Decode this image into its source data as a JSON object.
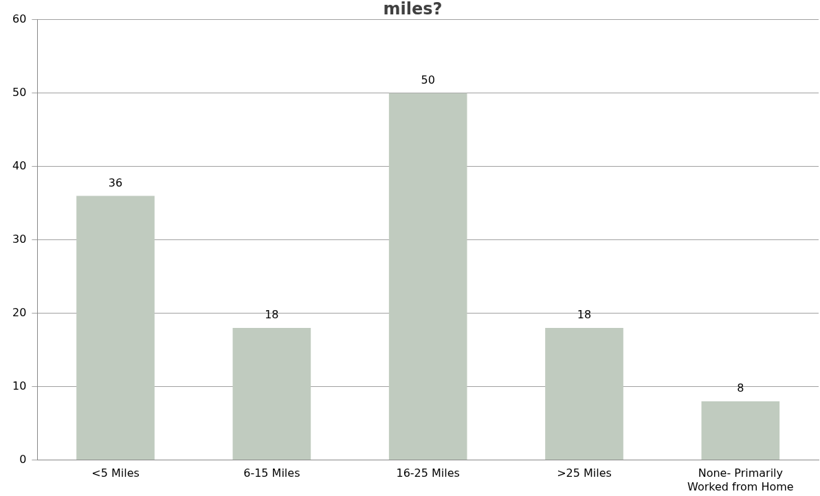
{
  "chart_data": {
    "type": "bar",
    "title": "miles?",
    "categories": [
      "<5 Miles",
      "6-15 Miles",
      "16-25 Miles",
      ">25 Miles",
      "None- Primarily Worked from Home"
    ],
    "values": [
      36,
      18,
      50,
      18,
      8
    ],
    "color": "#c0cbbf",
    "ylim": [
      0,
      60
    ],
    "yticks": [
      0,
      10,
      20,
      30,
      40,
      50,
      60
    ],
    "grid": "y",
    "data_labels": true
  }
}
